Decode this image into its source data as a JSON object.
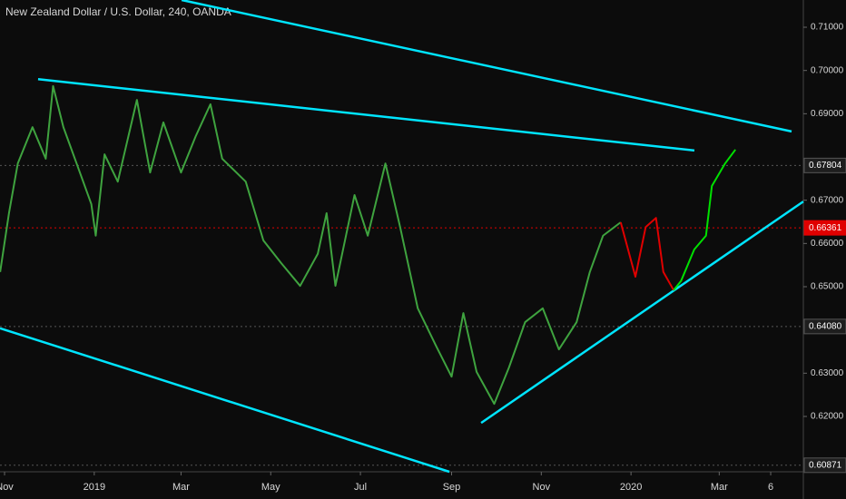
{
  "chart_data": {
    "type": "line",
    "title": "New Zealand Dollar / U.S. Dollar, 240, OANDA",
    "xlim": [
      -3.1,
      543.2
    ],
    "ylim": [
      0.6072,
      0.7163
    ],
    "xticks": [
      {
        "value": 0,
        "label": "Nov"
      },
      {
        "value": 61,
        "label": "2019"
      },
      {
        "value": 120,
        "label": "Mar"
      },
      {
        "value": 181,
        "label": "May"
      },
      {
        "value": 242,
        "label": "Jul"
      },
      {
        "value": 304,
        "label": "Sep"
      },
      {
        "value": 365,
        "label": "Nov"
      },
      {
        "value": 426,
        "label": "2020"
      },
      {
        "value": 486,
        "label": "Mar"
      },
      {
        "value": 521,
        "label": "6"
      }
    ],
    "yticks": [
      {
        "value": 0.62,
        "label": "0.62000"
      },
      {
        "value": 0.63,
        "label": "0.63000"
      },
      {
        "value": 0.65,
        "label": "0.65000"
      },
      {
        "value": 0.66,
        "label": "0.66000"
      },
      {
        "value": 0.67,
        "label": "0.67000"
      },
      {
        "value": 0.69,
        "label": "0.69000"
      },
      {
        "value": 0.7,
        "label": "0.70000"
      },
      {
        "value": 0.71,
        "label": "0.71000"
      }
    ],
    "price_markers": [
      {
        "value": 0.67804,
        "color": "#1e1e1e",
        "line": "#555555"
      },
      {
        "value": 0.66361,
        "color": "#e00000",
        "line": "#e00000"
      },
      {
        "value": 0.6408,
        "label": "0.64080",
        "color": "#1e1e1e",
        "line": "#555555"
      },
      {
        "value": 0.60871,
        "color": "#1e1e1e",
        "line": "#555555"
      }
    ],
    "series": [
      {
        "color": "#3fa33f",
        "x": [
          -3,
          3,
          9,
          19,
          28,
          33,
          40,
          49,
          59,
          62,
          68,
          77,
          90,
          99,
          108,
          120,
          130,
          140,
          148,
          164,
          176,
          188,
          201,
          213,
          219,
          225,
          238,
          247,
          259,
          269,
          281,
          293,
          304,
          312,
          321,
          333,
          343,
          354,
          366,
          377,
          389,
          398,
          407,
          419
        ],
        "values": [
          0.6534,
          0.667,
          0.6785,
          0.6869,
          0.6796,
          0.6964,
          0.6869,
          0.6785,
          0.6691,
          0.6618,
          0.6806,
          0.6743,
          0.6932,
          0.6764,
          0.688,
          0.6764,
          0.6848,
          0.6922,
          0.6796,
          0.6743,
          0.6607,
          0.6555,
          0.6502,
          0.6576,
          0.667,
          0.6502,
          0.6712,
          0.6618,
          0.6785,
          0.6638,
          0.645,
          0.6366,
          0.6292,
          0.6439,
          0.6303,
          0.6229,
          0.6313,
          0.6418,
          0.645,
          0.6355,
          0.6418,
          0.6534,
          0.6618,
          0.6649
        ]
      },
      {
        "color": "#e00000",
        "x": [
          419,
          429,
          436,
          443,
          448,
          455
        ],
        "values": [
          0.6649,
          0.6523,
          0.6638,
          0.6659,
          0.6534,
          0.6492
        ]
      },
      {
        "color": "#00e000",
        "x": [
          455,
          460,
          469,
          477,
          481,
          490,
          497
        ],
        "values": [
          0.6492,
          0.6513,
          0.6586,
          0.6618,
          0.6733,
          0.6785,
          0.6817
        ]
      }
    ],
    "trendlines": [
      {
        "color": "#00e5ff",
        "x": [
          120.4,
          535.2
        ],
        "values": [
          0.7163,
          0.6859
        ]
      },
      {
        "color": "#00e5ff",
        "x": [
          22.8,
          469.1
        ],
        "values": [
          0.698,
          0.6815
        ]
      },
      {
        "color": "#00e5ff",
        "x": [
          -3.1,
          302.5
        ],
        "values": [
          0.6404,
          0.6072
        ]
      },
      {
        "color": "#00e5ff",
        "x": [
          324.1,
          543.2
        ],
        "values": [
          0.6185,
          0.6697
        ]
      }
    ]
  }
}
